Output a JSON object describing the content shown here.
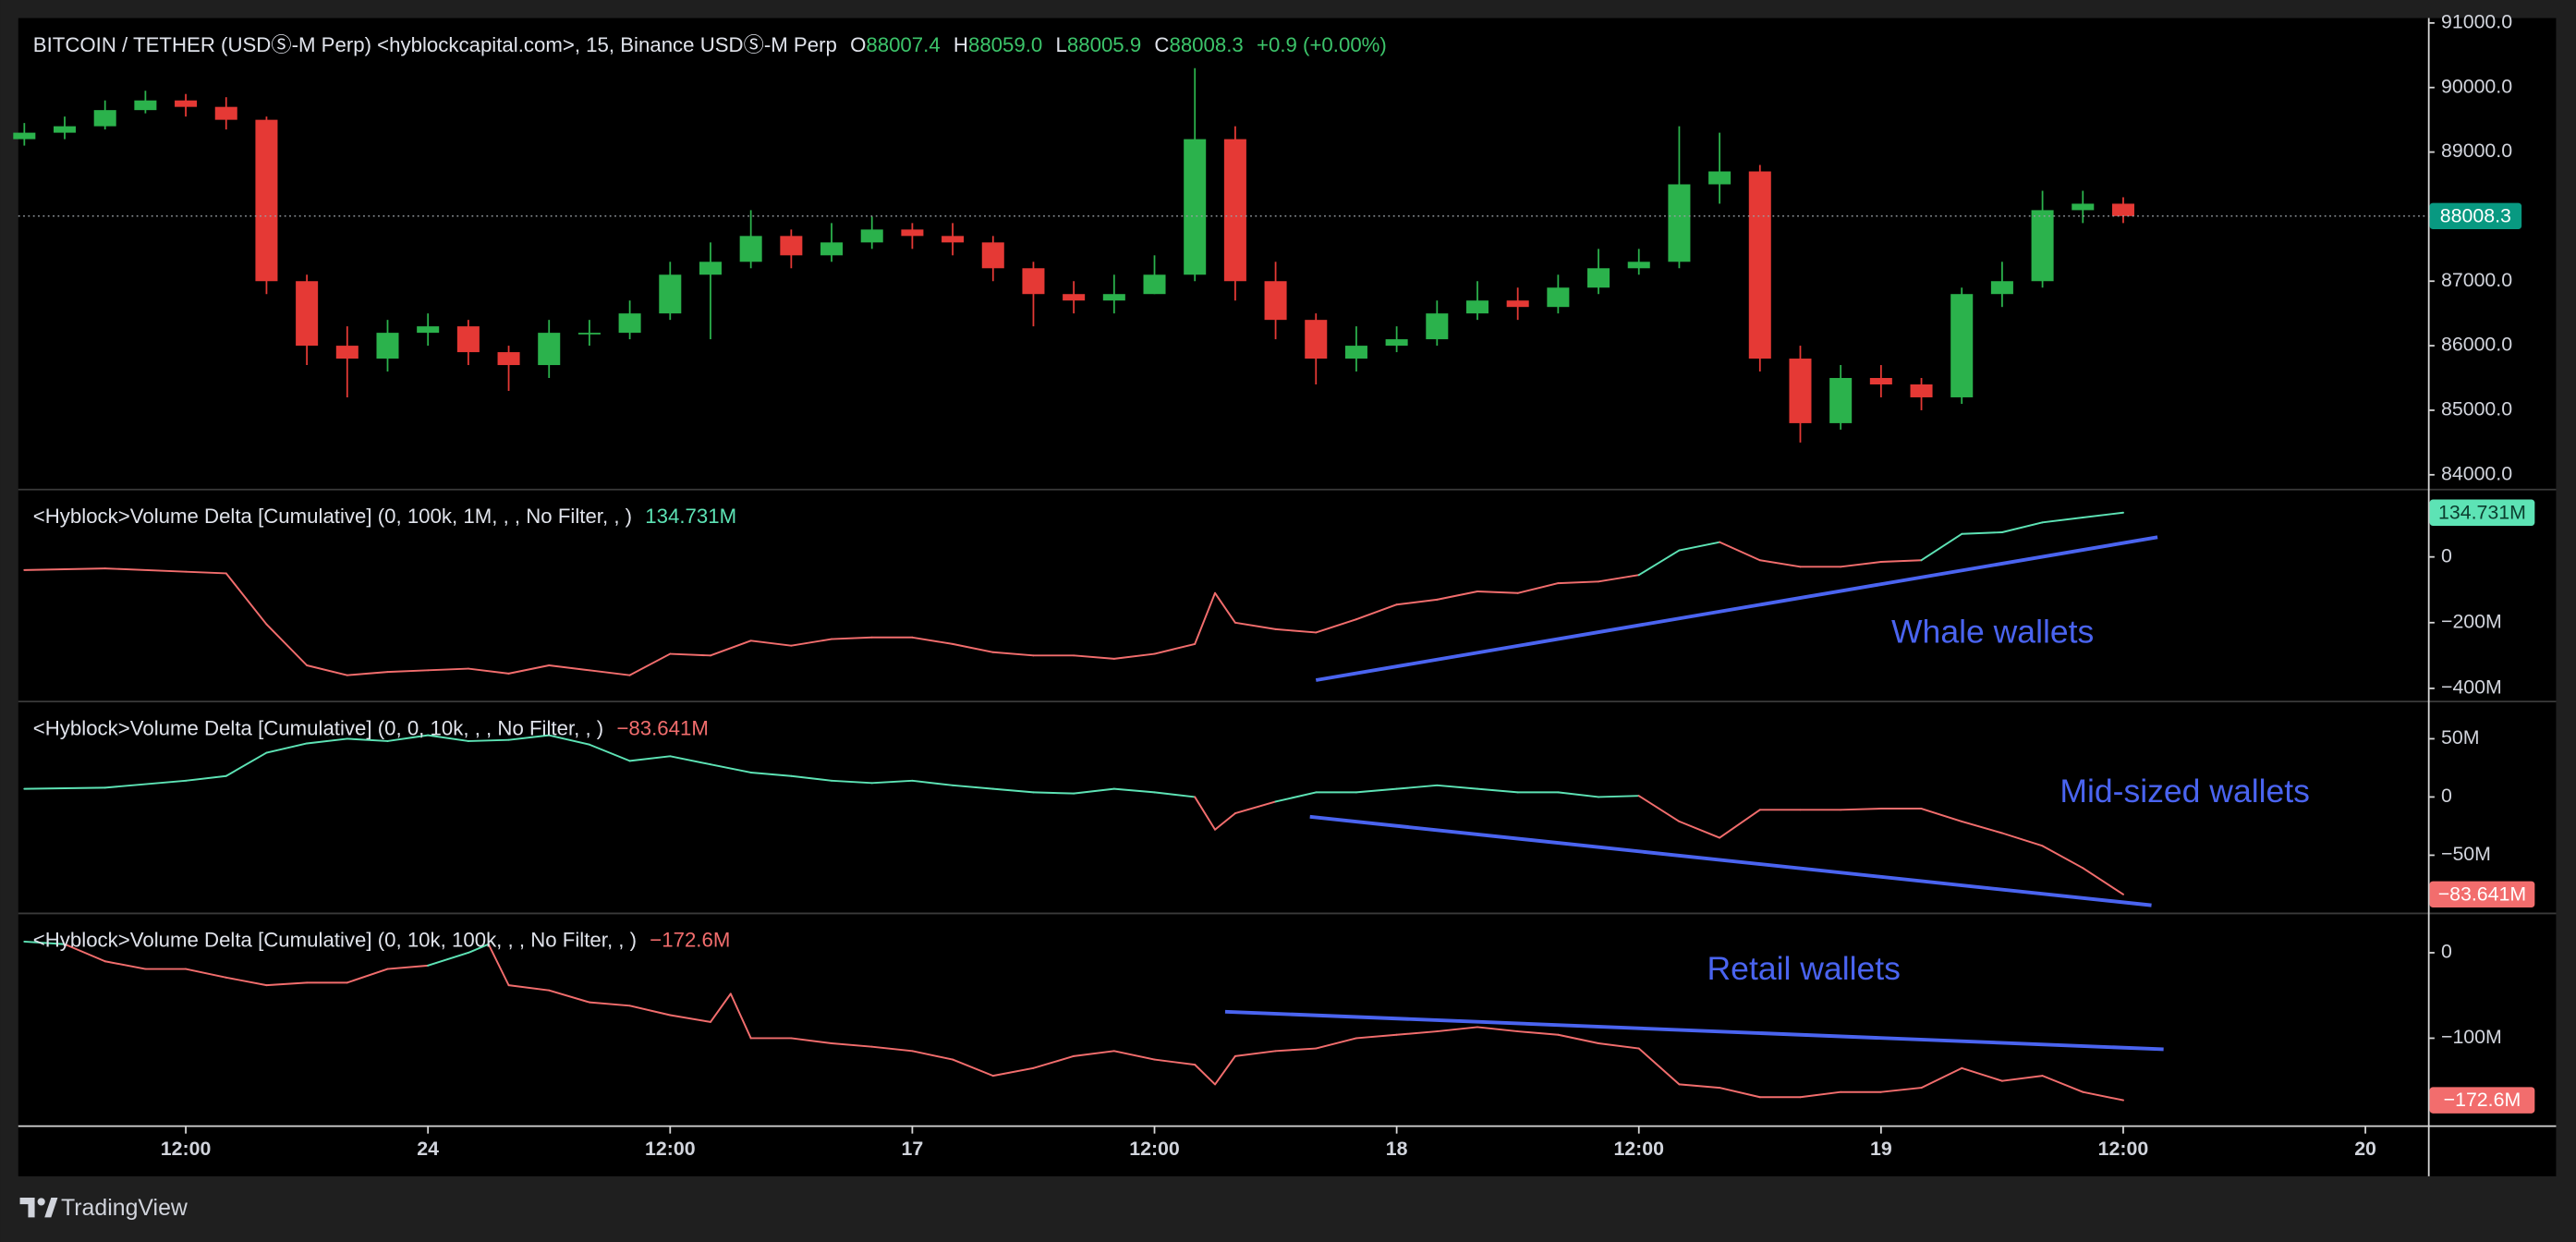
{
  "chart_data": [
    {
      "type": "candlestick",
      "title": "BITCOIN / TETHER (USDⓈ-M Perp) <hyblockcapital.com>, 15, Binance USDⓈ-M Perp",
      "legend": [
        {
          "key": "O",
          "value": "88007.4"
        },
        {
          "key": "H",
          "value": "88059.0"
        },
        {
          "key": "L",
          "value": "88005.9"
        },
        {
          "key": "C",
          "value": "88008.3"
        }
      ],
      "change": "+0.9 (+0.00%)",
      "up_color": "#2bb24c",
      "down_color": "#e53935",
      "x": [
        4,
        6,
        8,
        10,
        12,
        14,
        16,
        18,
        20,
        22,
        24,
        26,
        28,
        30,
        32,
        34,
        36,
        38,
        40,
        42,
        44,
        46,
        48,
        50,
        52,
        54,
        56,
        58,
        60,
        62,
        64,
        66,
        68,
        70,
        72,
        74,
        76,
        78,
        80,
        82,
        84,
        86,
        88,
        90,
        92,
        94,
        96,
        98,
        100,
        102,
        104,
        106,
        108
      ],
      "open": [
        89200,
        89300,
        89400,
        89650,
        89800,
        89700,
        89500,
        87000,
        86000,
        85800,
        86200,
        86300,
        85900,
        85700,
        86200,
        86200,
        86500,
        87100,
        87300,
        87700,
        87400,
        87600,
        87800,
        87700,
        87600,
        87200,
        86800,
        86700,
        86800,
        87100,
        89200,
        87000,
        86400,
        85800,
        86000,
        86100,
        86500,
        86700,
        86600,
        86900,
        87200,
        87300,
        88500,
        88700,
        85800,
        84800,
        85500,
        85400,
        85200,
        86800,
        87000,
        88100,
        88200
      ],
      "high": [
        89450,
        89550,
        89800,
        89950,
        89900,
        89850,
        89550,
        87100,
        86300,
        86400,
        86500,
        86400,
        86000,
        86400,
        86400,
        86700,
        87300,
        87600,
        88100,
        87800,
        87900,
        88000,
        87900,
        87900,
        87700,
        87300,
        87000,
        87100,
        87400,
        90300,
        89400,
        87300,
        86500,
        86300,
        86300,
        86700,
        87000,
        86900,
        87100,
        87500,
        87500,
        89400,
        89300,
        88800,
        86000,
        85700,
        85700,
        85500,
        86900,
        87300,
        88400,
        88400,
        88300
      ],
      "low": [
        89100,
        89200,
        89350,
        89600,
        89550,
        89350,
        86800,
        85700,
        85200,
        85600,
        86000,
        85700,
        85300,
        85500,
        86000,
        86100,
        86400,
        86100,
        87200,
        87200,
        87300,
        87500,
        87500,
        87400,
        87000,
        86300,
        86500,
        86500,
        86800,
        87000,
        86700,
        86100,
        85400,
        85600,
        85900,
        86000,
        86400,
        86400,
        86500,
        86800,
        87100,
        87200,
        88200,
        85600,
        84500,
        84700,
        85200,
        85000,
        85100,
        86600,
        86900,
        87900,
        87900
      ],
      "close": [
        89300,
        89400,
        89650,
        89800,
        89700,
        89500,
        87000,
        86000,
        85800,
        86200,
        86300,
        85900,
        85700,
        86200,
        86200,
        86500,
        87100,
        87300,
        87700,
        87400,
        87600,
        87800,
        87700,
        87600,
        87200,
        86800,
        86700,
        86800,
        87100,
        89200,
        87000,
        86400,
        85800,
        86000,
        86100,
        86500,
        86700,
        86600,
        86900,
        87200,
        87300,
        88500,
        88700,
        85800,
        84800,
        85500,
        85400,
        85200,
        86800,
        87000,
        88100,
        88200,
        88008.3
      ],
      "last_price": 88008.3,
      "last_price_color": "#089981",
      "ylim": [
        83771,
        91076
      ],
      "yticks": [
        {
          "value": 84000,
          "label": "84000.0"
        },
        {
          "value": 85000,
          "label": "85000.0"
        },
        {
          "value": 86000,
          "label": "86000.0"
        },
        {
          "value": 87000,
          "label": "87000.0"
        },
        {
          "value": 88000,
          "label": "88000.0"
        },
        {
          "value": 89000,
          "label": "89000.0"
        },
        {
          "value": 90000,
          "label": "90000.0"
        },
        {
          "value": 91000,
          "label": "91000.0"
        }
      ]
    },
    {
      "type": "line",
      "title": "<Hyblock>Volume Delta [Cumulative] (0, 100k, 1M, , , No Filter, , )",
      "last_value_label": "134.731M",
      "pos_color": "#5de3b5",
      "neg_color": "#f26d6d",
      "x": [
        4,
        8,
        12,
        14,
        16,
        18,
        20,
        22,
        24,
        26,
        28,
        30,
        32,
        34,
        36,
        38,
        40,
        42,
        44,
        46,
        48,
        50,
        52,
        54,
        56,
        58,
        60,
        62,
        63,
        64,
        66,
        68,
        70,
        72,
        74,
        76,
        78,
        80,
        82,
        84,
        86,
        88,
        90,
        92,
        94,
        96,
        98,
        100,
        102,
        104,
        106,
        108
      ],
      "values": [
        -40,
        -35,
        -45,
        -50,
        -205,
        -330,
        -360,
        -350,
        -345,
        -340,
        -355,
        -330,
        -345,
        -360,
        -295,
        -300,
        -255,
        -270,
        -250,
        -245,
        -245,
        -265,
        -290,
        -300,
        -300,
        -310,
        -295,
        -265,
        -110,
        -200,
        -220,
        -230,
        -190,
        -145,
        -130,
        -105,
        -110,
        -80,
        -75,
        -55,
        20,
        45,
        -10,
        -30,
        -30,
        -15,
        -10,
        70,
        75,
        105,
        120,
        134.731
      ],
      "ylim": [
        -440,
        205
      ],
      "yticks": [
        {
          "value": -400,
          "label": "−400M"
        },
        {
          "value": -200,
          "label": "−200M"
        },
        0
      ],
      "annotation": "Whale wallets",
      "annotation_color": "#4a64f0",
      "trend": {
        "x": [
          68,
          109.7
        ],
        "y": [
          -375,
          60
        ]
      }
    },
    {
      "type": "line",
      "title": "<Hyblock>Volume Delta [Cumulative] (0, 0, 10k, , , No Filter, , )",
      "last_value_label": "−83.641M",
      "pos_color": "#5de3b5",
      "neg_color": "#f26d6d",
      "x": [
        4,
        8,
        12,
        14,
        16,
        18,
        20,
        22,
        24,
        26,
        28,
        30,
        32,
        34,
        36,
        38,
        40,
        42,
        44,
        46,
        48,
        50,
        52,
        54,
        56,
        58,
        60,
        62,
        63,
        64,
        66,
        68,
        70,
        72,
        74,
        76,
        78,
        80,
        82,
        84,
        86,
        88,
        90,
        92,
        94,
        96,
        98,
        100,
        102,
        104,
        106,
        108
      ],
      "values": [
        7,
        8,
        14,
        18,
        38,
        46,
        50,
        48,
        53,
        48,
        49,
        53,
        45,
        31,
        35,
        28,
        21,
        18,
        14,
        12,
        14,
        10,
        7,
        4,
        3,
        7,
        4,
        0,
        -28,
        -14,
        -4,
        4,
        4,
        7,
        10,
        7,
        4,
        4,
        0,
        1,
        -21,
        -35,
        -11,
        -11,
        -11,
        -10,
        -10,
        -21,
        -31,
        -42,
        -61,
        -83.641
      ],
      "ylim": [
        -100,
        82
      ],
      "yticks": [
        {
          "value": -50,
          "label": "−50M"
        },
        0,
        {
          "value": 50,
          "label": "50M"
        }
      ],
      "annotation": "Mid-sized wallets",
      "annotation_color": "#4a64f0",
      "trend": {
        "x": [
          67.7,
          109.4
        ],
        "y": [
          -17,
          -93
        ]
      }
    },
    {
      "type": "line",
      "title": "<Hyblock>Volume Delta [Cumulative] (0, 10k, 100k, , , No Filter, , )",
      "last_value_label": "−172.6M",
      "pos_color": "#5de3b5",
      "neg_color": "#f26d6d",
      "x": [
        4,
        6,
        8,
        10,
        12,
        14,
        16,
        18,
        20,
        22,
        24,
        26,
        27,
        28,
        30,
        32,
        34,
        36,
        38,
        39,
        40,
        42,
        44,
        46,
        48,
        50,
        52,
        54,
        56,
        58,
        60,
        62,
        63,
        64,
        66,
        68,
        70,
        72,
        74,
        76,
        78,
        80,
        82,
        84,
        86,
        88,
        90,
        92,
        94,
        96,
        98,
        100,
        102,
        104,
        106,
        108
      ],
      "values": [
        13,
        10,
        -10,
        -19,
        -19,
        -29,
        -38,
        -35,
        -35,
        -19,
        -15,
        0,
        10,
        -38,
        -44,
        -58,
        -62,
        -73,
        -81,
        -48,
        -100,
        -100,
        -106,
        -110,
        -115,
        -125,
        -144,
        -135,
        -121,
        -115,
        -125,
        -131,
        -154,
        -121,
        -115,
        -112,
        -100,
        -96,
        -92,
        -87,
        -92,
        -96,
        -106,
        -112,
        -154,
        -158,
        -169,
        -169,
        -163,
        -163,
        -158,
        -135,
        -150,
        -144,
        -163,
        -172.6
      ],
      "ylim": [
        -202,
        46
      ],
      "yticks": [
        {
          "value": -100,
          "label": "−100M"
        },
        0
      ],
      "annotation": "Retail wallets",
      "annotation_color": "#4a64f0",
      "trend": {
        "x": [
          63.5,
          110
        ],
        "y": [
          -69,
          -113
        ]
      }
    }
  ],
  "time_axis": {
    "xlim": [
      3.7,
      123.1
    ],
    "xticks": [
      {
        "value": 12,
        "label": "12:00"
      },
      24,
      {
        "value": 36,
        "label": "12:00"
      },
      {
        "value": 48,
        "label": "17"
      },
      {
        "value": 60,
        "label": "12:00"
      },
      {
        "value": 72,
        "label": "18"
      },
      {
        "value": 84,
        "label": "12:00"
      },
      {
        "value": 96,
        "label": "19"
      },
      {
        "value": 108,
        "label": "12:00"
      },
      {
        "value": 120,
        "label": "20"
      }
    ]
  },
  "footer": {
    "brand": "TradingView"
  }
}
